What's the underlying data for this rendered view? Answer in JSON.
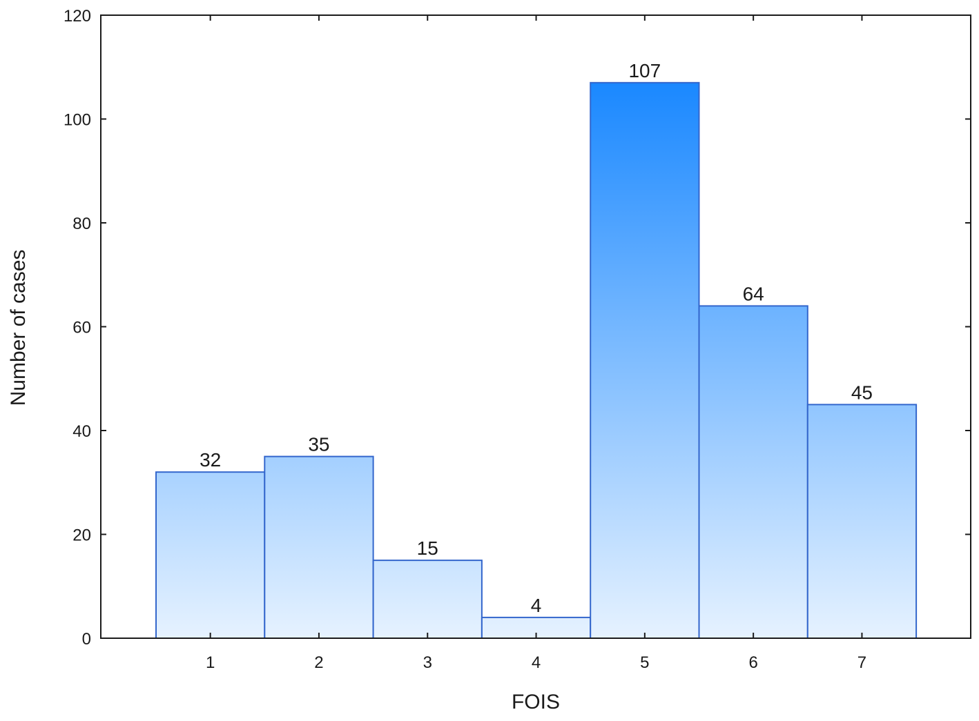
{
  "chart_data": {
    "type": "bar",
    "title": "",
    "xlabel": "FOIS",
    "ylabel": "Number of cases",
    "categories": [
      "1",
      "2",
      "3",
      "4",
      "5",
      "6",
      "7"
    ],
    "values": [
      32,
      35,
      15,
      4,
      107,
      64,
      45
    ],
    "ylim": [
      0,
      120
    ],
    "yticks": [
      0,
      20,
      40,
      60,
      80,
      100,
      120
    ],
    "grid": false,
    "legend": "none"
  },
  "colors": {
    "bar_top_max": "#1a88ff",
    "bar_bottom": "#e6f2ff",
    "bar_border": "#3366cc",
    "axis": "#1a1a1a"
  }
}
